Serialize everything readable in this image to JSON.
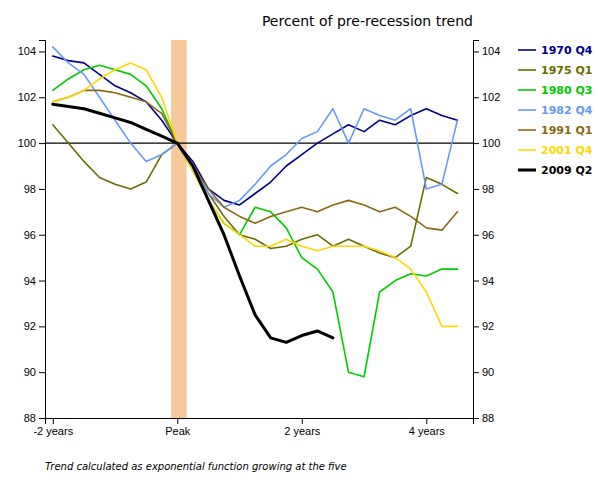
{
  "chart_data": {
    "type": "line",
    "title": "Percent of pre-recession trend",
    "footnote": "Trend calculated as exponential function growing at the five",
    "x": [
      -8,
      -7,
      -6,
      -5,
      -4,
      -3,
      -2,
      -1,
      0,
      1,
      2,
      3,
      4,
      5,
      6,
      7,
      8,
      9,
      10,
      11,
      12,
      13,
      14,
      15,
      16,
      17,
      18
    ],
    "xlim": [
      -8.5,
      19
    ],
    "xticks": [
      {
        "value": -8,
        "label": "-2 years"
      },
      {
        "value": 0,
        "label": "Peak"
      },
      {
        "value": 8,
        "label": "2 years"
      },
      {
        "value": 16,
        "label": "4 years"
      }
    ],
    "ylim": [
      88,
      104.5
    ],
    "yticks": [
      88,
      90,
      92,
      94,
      96,
      98,
      100,
      102,
      104
    ],
    "y2lim": [
      88,
      104.5
    ],
    "y2ticks": [
      88,
      90,
      92,
      94,
      96,
      98,
      100,
      102,
      104
    ],
    "span": {
      "x": [
        -0.4,
        0.6
      ],
      "color": "#F5C99A"
    },
    "reference_line": {
      "y": 100,
      "color": "#000000"
    },
    "series": [
      {
        "name": "1970 Q4",
        "color": "#00008B",
        "values": [
          103.8,
          103.6,
          103.5,
          103.0,
          102.5,
          102.2,
          101.8,
          101.0,
          100.0,
          99.2,
          98.0,
          97.5,
          97.3,
          97.8,
          98.3,
          99.0,
          99.5,
          100.0,
          100.4,
          100.8,
          100.5,
          101.0,
          100.8,
          101.2,
          101.5,
          101.2,
          101.0
        ]
      },
      {
        "name": "1975 Q1",
        "color": "#6B6B00",
        "values": [
          100.8,
          100.0,
          99.2,
          98.5,
          98.2,
          98.0,
          98.3,
          99.5,
          100.0,
          99.0,
          97.8,
          96.8,
          96.0,
          95.8,
          95.4,
          95.5,
          95.8,
          96.0,
          95.5,
          95.8,
          95.5,
          95.2,
          95.0,
          95.5,
          98.5,
          98.2,
          97.8
        ]
      },
      {
        "name": "1980 Q3",
        "color": "#00CC00",
        "values": [
          102.3,
          102.8,
          103.2,
          103.4,
          103.2,
          103.0,
          102.5,
          101.5,
          100.0,
          98.8,
          97.5,
          96.5,
          96.0,
          97.2,
          97.0,
          96.3,
          95.0,
          94.5,
          93.5,
          90.0,
          89.8,
          93.5,
          94.0,
          94.3,
          94.2,
          94.5,
          94.5
        ]
      },
      {
        "name": "1982 Q4",
        "color": "#6699FF",
        "values": [
          104.2,
          103.5,
          103.0,
          102.0,
          101.0,
          100.0,
          99.2,
          99.5,
          100.0,
          99.0,
          97.8,
          97.2,
          97.5,
          98.2,
          99.0,
          99.5,
          100.2,
          100.5,
          101.5,
          100.0,
          101.5,
          101.2,
          101.0,
          101.5,
          98.0,
          98.2,
          101.0
        ]
      },
      {
        "name": "1991 Q1",
        "color": "#8B6914",
        "values": [
          101.8,
          102.0,
          102.3,
          102.3,
          102.2,
          102.0,
          101.8,
          101.3,
          100.0,
          99.0,
          98.0,
          97.2,
          96.8,
          96.5,
          96.8,
          97.0,
          97.2,
          97.0,
          97.3,
          97.5,
          97.3,
          97.0,
          97.2,
          96.8,
          96.3,
          96.2,
          97.0
        ]
      },
      {
        "name": "2001 Q4",
        "color": "#FFD700",
        "values": [
          101.8,
          102.0,
          102.3,
          102.8,
          103.2,
          103.5,
          103.2,
          102.0,
          100.0,
          98.8,
          97.5,
          96.5,
          96.0,
          95.5,
          95.5,
          95.8,
          95.5,
          95.3,
          95.5,
          95.5,
          95.5,
          95.3,
          95.0,
          94.5,
          93.5,
          92.0,
          92.0
        ]
      },
      {
        "name": "2009 Q2",
        "color": "#000000",
        "values": [
          101.7,
          101.6,
          101.5,
          101.3,
          101.1,
          100.9,
          100.6,
          100.3,
          100.0,
          99.0,
          97.5,
          96.0,
          94.2,
          92.5,
          91.5,
          91.3,
          91.6,
          91.8,
          91.5,
          null,
          null,
          null,
          null,
          null,
          null,
          null,
          null
        ]
      }
    ]
  }
}
